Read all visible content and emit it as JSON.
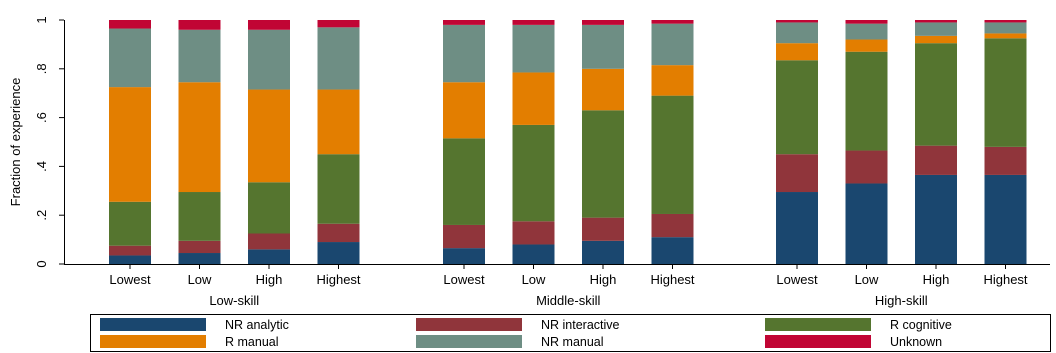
{
  "chart_data": {
    "type": "bar",
    "stacked": true,
    "ylabel": "Fraction of experience",
    "ylim": [
      0,
      1
    ],
    "yticks": [
      {
        "value": 0,
        "label": "0"
      },
      {
        "value": 0.2,
        "label": ".2"
      },
      {
        "value": 0.4,
        "label": ".4"
      },
      {
        "value": 0.6,
        "label": ".6"
      },
      {
        "value": 0.8,
        "label": ".8"
      },
      {
        "value": 1,
        "label": "1"
      }
    ],
    "grid": false,
    "legend_position": "bottom",
    "categories": [
      "Lowest",
      "Low",
      "High",
      "Highest"
    ],
    "groups": [
      "Low-skill",
      "Middle-skill",
      "High-skill"
    ],
    "series": [
      {
        "name": "NR analytic",
        "color": "#1a476f",
        "values": [
          [
            0.035,
            0.045,
            0.06,
            0.09
          ],
          [
            0.065,
            0.08,
            0.095,
            0.11
          ],
          [
            0.295,
            0.33,
            0.365,
            0.365
          ]
        ]
      },
      {
        "name": "NR interactive",
        "color": "#90353b",
        "values": [
          [
            0.04,
            0.05,
            0.065,
            0.075
          ],
          [
            0.095,
            0.095,
            0.095,
            0.095
          ],
          [
            0.155,
            0.135,
            0.12,
            0.115
          ]
        ]
      },
      {
        "name": "R cognitive",
        "color": "#55752f",
        "values": [
          [
            0.18,
            0.2,
            0.21,
            0.285
          ],
          [
            0.355,
            0.395,
            0.44,
            0.485
          ],
          [
            0.385,
            0.405,
            0.42,
            0.445
          ]
        ]
      },
      {
        "name": "R manual",
        "color": "#e37e00",
        "values": [
          [
            0.47,
            0.45,
            0.38,
            0.265
          ],
          [
            0.23,
            0.215,
            0.17,
            0.125
          ],
          [
            0.07,
            0.05,
            0.03,
            0.02
          ]
        ]
      },
      {
        "name": "NR manual",
        "color": "#6e8e84",
        "values": [
          [
            0.24,
            0.215,
            0.245,
            0.255
          ],
          [
            0.235,
            0.195,
            0.18,
            0.17
          ],
          [
            0.085,
            0.065,
            0.055,
            0.045
          ]
        ]
      },
      {
        "name": "Unknown",
        "color": "#c10534",
        "values": [
          [
            0.035,
            0.04,
            0.04,
            0.03
          ],
          [
            0.02,
            0.02,
            0.02,
            0.015
          ],
          [
            0.01,
            0.015,
            0.01,
            0.01
          ]
        ]
      }
    ]
  }
}
